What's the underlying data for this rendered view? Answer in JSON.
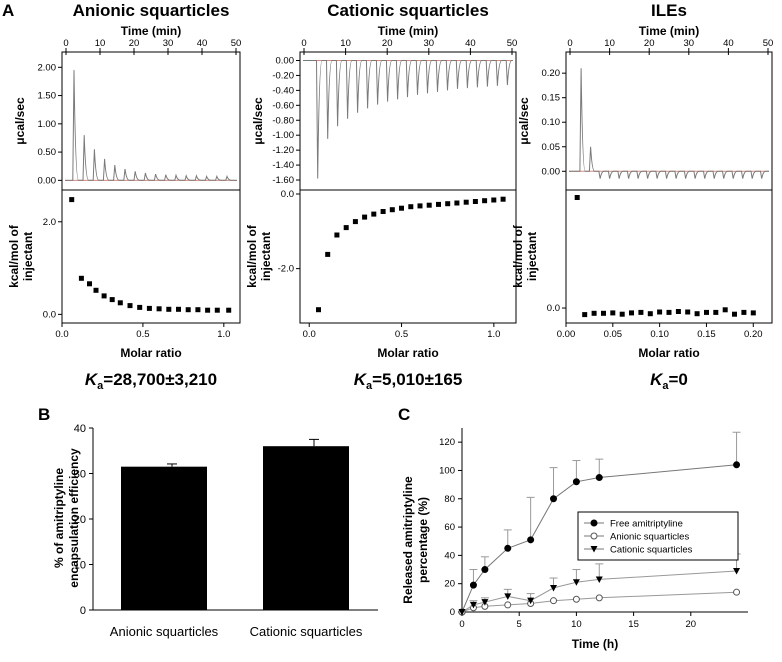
{
  "panels": {
    "A": {
      "label": "A",
      "itc": [
        {
          "title": "Anionic squarticles",
          "top_xlabel": "Time (min)",
          "top_ylabel": "μcal/sec",
          "bottom_ylabel_line1": "kcal/mol of",
          "bottom_ylabel_line2": "injectant",
          "xlabel": "Molar ratio",
          "ka_symbol": "K",
          "ka_sub": "a",
          "ka_value": "=28,700±3,210",
          "time_range": [
            0,
            50
          ],
          "time_ticks": [
            0,
            10,
            20,
            30,
            40,
            50
          ],
          "rate_range": [
            -0.1,
            2.2
          ],
          "rate_ticks": [
            0.0,
            0.5,
            1.0,
            1.5,
            2.0
          ],
          "rate_tick_labels": [
            "0.00",
            "0.50",
            "1.00",
            "1.50",
            "2.00"
          ],
          "injections": {
            "first_time": 2.0,
            "interval": 3.0,
            "count": 16,
            "peaks": [
              1.95,
              0.8,
              0.55,
              0.38,
              0.27,
              0.2,
              0.16,
              0.13,
              0.11,
              0.1,
              0.09,
              0.08,
              0.08,
              0.07,
              0.07,
              0.07
            ]
          },
          "ratio_range": [
            0,
            1.1
          ],
          "ratio_ticks": [
            0.0,
            0.5,
            1.0
          ],
          "ratio_tick_labels": [
            "0.0",
            "0.5",
            "1.0"
          ],
          "enthalpy_range": [
            -0.1,
            2.6
          ],
          "enthalpy_ticks": [
            0.0,
            2.0
          ],
          "enthalpy_tick_labels": [
            "0.0",
            "2.0"
          ],
          "points": {
            "x": [
              0.06,
              0.12,
              0.17,
              0.21,
              0.26,
              0.31,
              0.36,
              0.42,
              0.48,
              0.54,
              0.6,
              0.66,
              0.72,
              0.78,
              0.84,
              0.9,
              0.96,
              1.03
            ],
            "y": [
              2.48,
              0.78,
              0.66,
              0.52,
              0.4,
              0.32,
              0.25,
              0.19,
              0.15,
              0.13,
              0.12,
              0.11,
              0.11,
              0.1,
              0.1,
              0.09,
              0.09,
              0.09
            ]
          }
        },
        {
          "title": "Cationic squarticles",
          "top_xlabel": "Time (min)",
          "top_ylabel": "μcal/sec",
          "bottom_ylabel_line1": "kcal/mol of",
          "bottom_ylabel_line2": "injectant",
          "xlabel": "Molar ratio",
          "ka_symbol": "K",
          "ka_sub": "a",
          "ka_value": "=5,010±165",
          "time_range": [
            0,
            50
          ],
          "time_ticks": [
            0,
            10,
            20,
            30,
            40,
            50
          ],
          "rate_range": [
            -1.68,
            0.06
          ],
          "rate_ticks": [
            0.0,
            -0.2,
            -0.4,
            -0.6,
            -0.8,
            -1.0,
            -1.2,
            -1.4,
            -1.6
          ],
          "rate_tick_labels": [
            "0.00",
            "-0.20",
            "-0.40",
            "-0.60",
            "-0.80",
            "-1.00",
            "-1.20",
            "-1.40",
            "-1.60"
          ],
          "injections": {
            "first_time": 3.0,
            "interval": 2.4,
            "count": 20,
            "peaks": [
              -1.58,
              -1.05,
              -0.88,
              -0.78,
              -0.7,
              -0.64,
              -0.59,
              -0.55,
              -0.52,
              -0.49,
              -0.46,
              -0.44,
              -0.42,
              -0.4,
              -0.38,
              -0.37,
              -0.36,
              -0.35,
              -0.34,
              -0.33
            ]
          },
          "ratio_range": [
            -0.05,
            1.12
          ],
          "ratio_ticks": [
            0.0,
            0.5,
            1.0
          ],
          "ratio_tick_labels": [
            "0.0",
            "0.5",
            "1.0"
          ],
          "enthalpy_range": [
            -3.35,
            0.0
          ],
          "enthalpy_ticks": [
            0.0,
            -2.0
          ],
          "enthalpy_tick_labels": [
            "0.0",
            "-2.0"
          ],
          "points": {
            "x": [
              0.05,
              0.1,
              0.15,
              0.2,
              0.25,
              0.3,
              0.35,
              0.4,
              0.45,
              0.5,
              0.55,
              0.6,
              0.65,
              0.7,
              0.75,
              0.8,
              0.85,
              0.9,
              0.95,
              1.0,
              1.05
            ],
            "y": [
              -3.1,
              -1.62,
              -1.1,
              -0.9,
              -0.74,
              -0.62,
              -0.54,
              -0.47,
              -0.42,
              -0.38,
              -0.34,
              -0.32,
              -0.3,
              -0.28,
              -0.26,
              -0.24,
              -0.22,
              -0.2,
              -0.18,
              -0.16,
              -0.14
            ]
          }
        },
        {
          "title": "ILEs",
          "top_xlabel": "Time (min)",
          "top_ylabel": "μcal/sec",
          "bottom_ylabel_line1": "kcal/mol of",
          "bottom_ylabel_line2": "injectant",
          "xlabel": "Molar ratio",
          "ka_symbol": "K",
          "ka_sub": "a",
          "ka_value": "=0",
          "time_range": [
            0,
            50
          ],
          "time_ticks": [
            0,
            10,
            20,
            30,
            40,
            50
          ],
          "rate_range": [
            -0.03,
            0.235
          ],
          "rate_ticks": [
            0.0,
            0.05,
            0.1,
            0.15,
            0.2
          ],
          "rate_tick_labels": [
            "0.00",
            "0.05",
            "0.10",
            "0.15",
            "0.20"
          ],
          "injections": {
            "first_time": 2.5,
            "interval": 2.4,
            "count": 20,
            "peaks": [
              0.21,
              0.05,
              -0.015,
              -0.015,
              -0.015,
              -0.015,
              -0.015,
              -0.015,
              -0.015,
              -0.015,
              -0.015,
              -0.015,
              -0.015,
              -0.015,
              -0.015,
              -0.015,
              -0.015,
              -0.015,
              -0.015,
              -0.015
            ]
          },
          "ratio_range": [
            0,
            0.22
          ],
          "ratio_ticks": [
            0.0,
            0.05,
            0.1,
            0.15,
            0.2
          ],
          "ratio_tick_labels": [
            "0.00",
            "0.05",
            "0.10",
            "0.15",
            "0.20"
          ],
          "enthalpy_range": [
            -0.25,
            2.6
          ],
          "enthalpy_ticks": [
            0.0
          ],
          "enthalpy_tick_labels": [
            "0.0"
          ],
          "points": {
            "x": [
              0.012,
              0.02,
              0.03,
              0.04,
              0.05,
              0.06,
              0.07,
              0.08,
              0.09,
              0.1,
              0.11,
              0.12,
              0.13,
              0.14,
              0.15,
              0.16,
              0.17,
              0.18,
              0.19,
              0.2
            ],
            "y": [
              2.52,
              -0.15,
              -0.12,
              -0.12,
              -0.11,
              -0.14,
              -0.11,
              -0.1,
              -0.13,
              -0.09,
              -0.1,
              -0.08,
              -0.09,
              -0.13,
              -0.1,
              -0.1,
              -0.04,
              -0.14,
              -0.1,
              -0.11
            ]
          }
        }
      ]
    },
    "B": {
      "label": "B",
      "ylabel_line1": "% of amitriptyline",
      "ylabel_line2": "encapsulation efficiency"
    },
    "C": {
      "label": "C",
      "ylabel_line1": "Released amitriptyline",
      "ylabel_line2": "percentage (%)"
    }
  },
  "chart_data": [
    {
      "type": "bar",
      "panel": "B",
      "title": "",
      "categories": [
        "Anionic squarticles",
        "Cationic squarticles"
      ],
      "values": [
        31.5,
        36.0
      ],
      "errors": [
        0.6,
        1.5
      ],
      "xlabel": "",
      "ylabel": "% of amitriptyline encapsulation efficiency",
      "ylim": [
        0,
        40
      ],
      "yticks": [
        0,
        10,
        20,
        30,
        40
      ],
      "bar_color": "#000000"
    },
    {
      "type": "line",
      "panel": "C",
      "title": "",
      "xlabel": "Time (h)",
      "ylabel": "Released amitriptyline percentage (%)",
      "xlim": [
        0,
        25
      ],
      "ylim": [
        0,
        130
      ],
      "xticks": [
        0,
        5,
        10,
        15,
        20
      ],
      "yticks": [
        0,
        20,
        40,
        60,
        80,
        100,
        120
      ],
      "legend_position": "center-right",
      "series": [
        {
          "name": "Free amitriptyline",
          "marker": "filled-circle",
          "x": [
            0,
            1,
            2,
            4,
            6,
            8,
            10,
            12,
            24
          ],
          "values": [
            0,
            19,
            30,
            45,
            51,
            80,
            92,
            95,
            104
          ],
          "errors": [
            0,
            11,
            9,
            13,
            30,
            22,
            15,
            13,
            23
          ]
        },
        {
          "name": "Anionic squarticles",
          "marker": "open-circle",
          "x": [
            0,
            1,
            2,
            4,
            6,
            8,
            10,
            12,
            24
          ],
          "values": [
            0,
            3,
            4,
            5,
            6,
            8,
            9,
            10,
            14
          ],
          "errors": [
            0,
            0,
            0,
            0,
            0,
            0,
            0,
            0,
            0
          ]
        },
        {
          "name": "Cationic squarticles",
          "marker": "filled-triangle-down",
          "x": [
            0,
            1,
            2,
            4,
            6,
            8,
            10,
            12,
            24
          ],
          "values": [
            0,
            5,
            7,
            11,
            8,
            17,
            21,
            23,
            29
          ],
          "errors": [
            0,
            3,
            3,
            5,
            5,
            7,
            9,
            11,
            12
          ]
        }
      ]
    }
  ]
}
